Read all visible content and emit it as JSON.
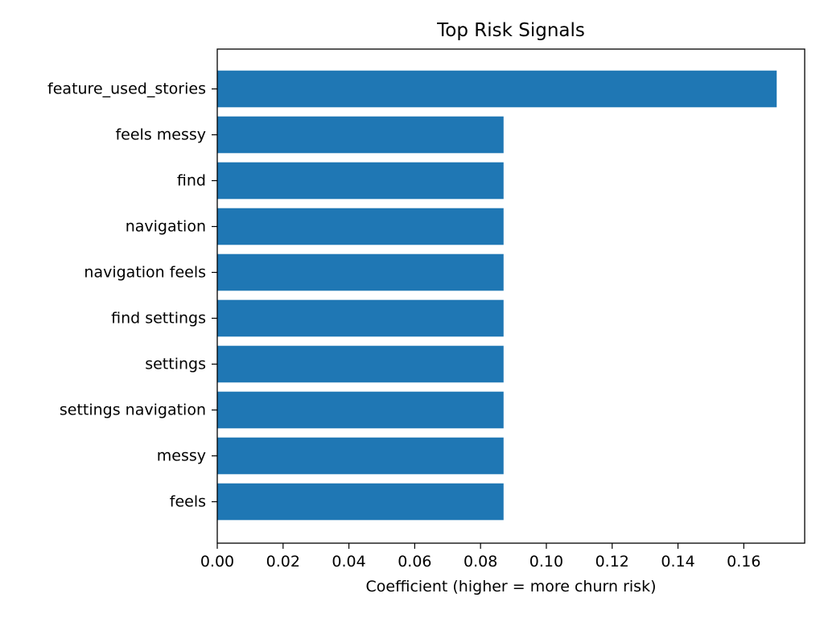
{
  "chart_data": {
    "type": "bar",
    "orientation": "horizontal",
    "title": "Top Risk Signals",
    "xlabel": "Coefficient (higher = more churn risk)",
    "ylabel": "",
    "categories": [
      "feature_used_stories",
      "feels messy",
      "find",
      "navigation",
      "navigation feels",
      "find settings",
      "settings",
      "settings navigation",
      "messy",
      "feels"
    ],
    "values": [
      0.17,
      0.087,
      0.087,
      0.087,
      0.087,
      0.087,
      0.087,
      0.087,
      0.087,
      0.087
    ],
    "xlim": [
      0,
      0.1785
    ],
    "xticks": [
      0.0,
      0.02,
      0.04,
      0.06,
      0.08,
      0.1,
      0.12,
      0.14,
      0.16
    ],
    "xtick_labels": [
      "0.00",
      "0.02",
      "0.04",
      "0.06",
      "0.08",
      "0.10",
      "0.12",
      "0.14",
      "0.16"
    ],
    "bar_color": "#1f77b4",
    "grid": false,
    "legend": "none"
  }
}
